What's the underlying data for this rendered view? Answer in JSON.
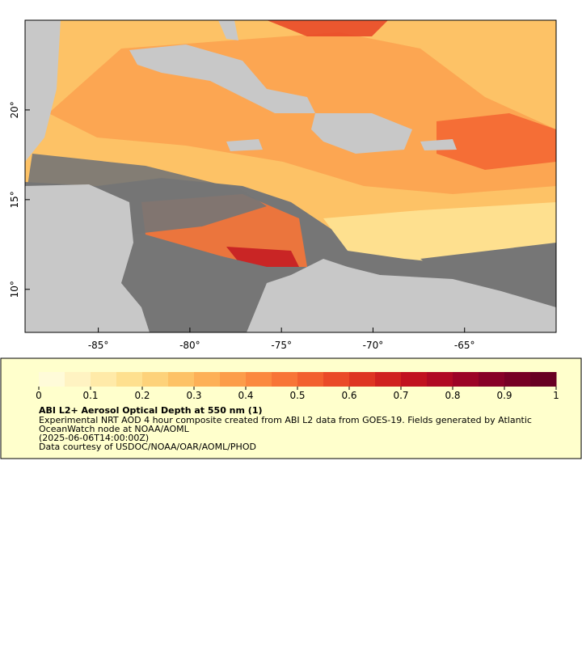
{
  "map": {
    "xlim": [
      -89,
      -60
    ],
    "ylim": [
      7.6,
      25
    ],
    "xticks": [
      {
        "value": -85,
        "label": "-85°"
      },
      {
        "value": -80,
        "label": "-80°"
      },
      {
        "value": -75,
        "label": "-75°"
      },
      {
        "value": -70,
        "label": "-70°"
      },
      {
        "value": -65,
        "label": "-65°"
      }
    ],
    "yticks": [
      {
        "value": 10,
        "label": "10°"
      },
      {
        "value": 15,
        "label": "15°"
      },
      {
        "value": 20,
        "label": "20°"
      }
    ]
  },
  "colorbar": {
    "lim": [
      0,
      1
    ],
    "ticks": [
      0,
      0.1,
      0.2,
      0.3,
      0.4,
      0.5,
      0.6,
      0.7,
      0.8,
      0.9,
      1
    ],
    "colors": [
      "#fffbd9",
      "#fff3c2",
      "#ffeaa8",
      "#fee08f",
      "#fdd27a",
      "#fdc266",
      "#fdb057",
      "#fc9d4a",
      "#fb893f",
      "#f87537",
      "#f2602f",
      "#ea4a28",
      "#de3522",
      "#d0221f",
      "#c1121f",
      "#b00a23",
      "#9c0426",
      "#880127",
      "#770025",
      "#680022"
    ]
  },
  "legend": {
    "title": "ABI L2+ Aerosol Optical Depth at 550 nm (1)",
    "lines": [
      "Experimental NRT AOD 4 hour composite created from ABI L2 data from GOES-19. Fields generated by Atlantic",
      "OceanWatch node at NOAA/AOML",
      "(2025-06-06T14:00:00Z)",
      "Data courtesy of USDOC/NOAA/OAR/AOML/PHOD"
    ]
  }
}
